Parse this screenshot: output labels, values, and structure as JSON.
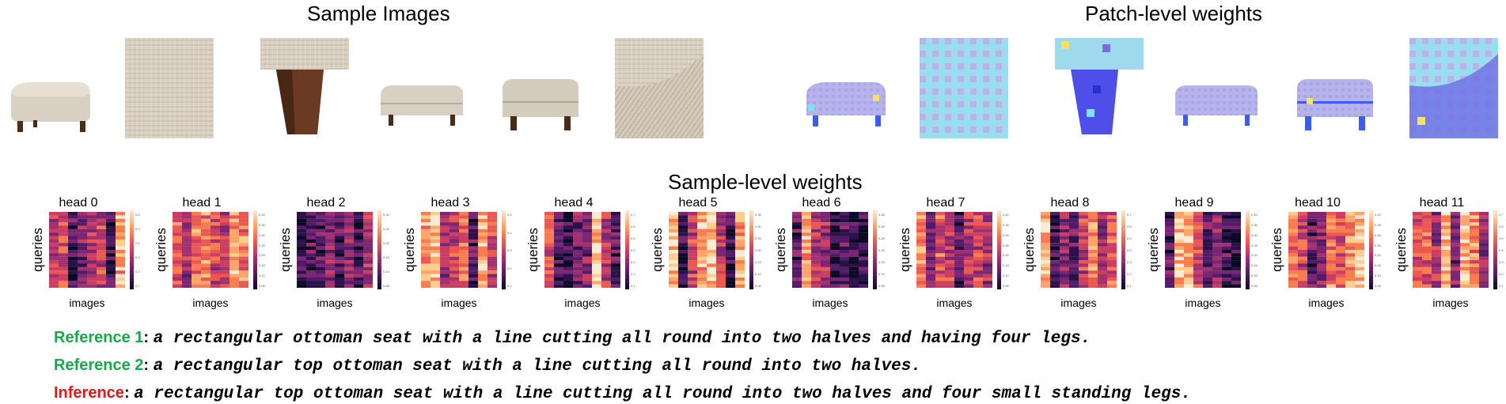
{
  "sections": {
    "sample_images": "Sample Images",
    "patch_weights": "Patch-level weights",
    "sample_weights": "Sample-level weights"
  },
  "heads": [
    "head 0",
    "head 1",
    "head 2",
    "head 3",
    "head 4",
    "head 5",
    "head 6",
    "head 7",
    "head 8",
    "head 9",
    "head 10",
    "head 11"
  ],
  "axis": {
    "y": "queries",
    "x": "images"
  },
  "captions": [
    {
      "label": "Reference 1",
      "color": "#17a84b",
      "text": "a rectangular ottoman seat with a line cutting all round into two halves and having four legs."
    },
    {
      "label": "Reference 2",
      "color": "#17a84b",
      "text": "a rectangular top ottoman seat with a line cutting all round into two halves."
    },
    {
      "label": "Inference",
      "color": "#e8141a",
      "text": "a rectangular top ottoman seat with a line cutting all round into two halves and four small standing legs."
    }
  ],
  "colorbar_ticks": [
    [
      "0.6",
      "0.5",
      "0.4",
      "0.3",
      "0.2",
      "0.1"
    ],
    [
      "0.40",
      "0.35",
      "0.30",
      "0.25",
      "0.20",
      "0.15",
      "0.10",
      "0.05"
    ],
    [
      "0.30",
      "0.25",
      "0.20",
      "0.15",
      "0.10",
      "0.05"
    ],
    [
      "0.5",
      "0.4",
      "0.3",
      "0.2",
      "0.1"
    ],
    [
      "0.7",
      "0.6",
      "0.5",
      "0.4",
      "0.3",
      "0.2",
      "0.1"
    ],
    [
      "0.35",
      "0.30",
      "0.25",
      "0.20",
      "0.15",
      "0.10",
      "0.05"
    ],
    [
      "0.35",
      "0.30",
      "0.25",
      "0.20",
      "0.15",
      "0.10",
      "0.05"
    ],
    [
      "0.40",
      "0.35",
      "0.30",
      "0.25",
      "0.20",
      "0.15",
      "0.10",
      "0.05"
    ],
    [
      "0.7",
      "0.6",
      "0.5",
      "0.4",
      "0.3",
      "0.2",
      "0.1"
    ],
    [
      "0.40",
      "0.35",
      "0.30",
      "0.25",
      "0.20",
      "0.15",
      "0.10",
      "0.05"
    ],
    [
      "0.40",
      "0.35",
      "0.30",
      "0.25",
      "0.20",
      "0.15",
      "0.10",
      "0.05"
    ],
    [
      "0.7",
      "0.6",
      "0.5",
      "0.4",
      "0.3",
      "0.2",
      "0.1"
    ]
  ],
  "image_kinds": [
    "ottoman-full",
    "fabric-closeup",
    "leg-closeup",
    "ottoman-front",
    "ottoman-side",
    "corner-closeup"
  ],
  "colors": {
    "reference": "#17a84b",
    "inference": "#e8141a"
  }
}
